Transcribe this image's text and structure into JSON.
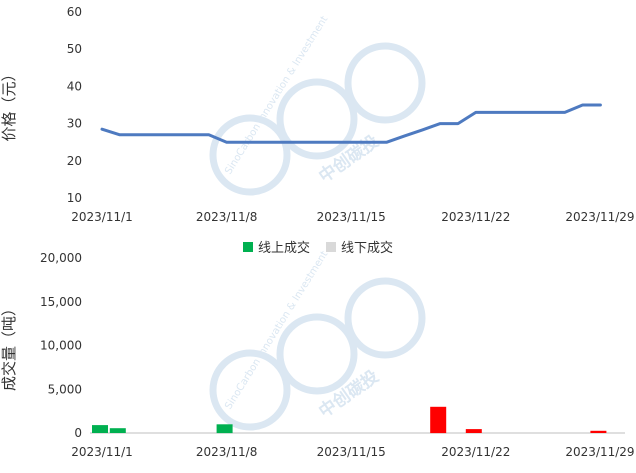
{
  "chart_data": [
    {
      "type": "line",
      "ylabel": "价格（元）",
      "ylim": [
        10,
        60
      ],
      "yticks": [
        10,
        20,
        30,
        40,
        50,
        60
      ],
      "xticks": [
        "2023/11/1",
        "2023/11/8",
        "2023/11/15",
        "2023/11/22",
        "2023/11/29"
      ],
      "grid": false,
      "series": [
        {
          "color": "#4e7ac0",
          "points": [
            [
              "2023/11/1",
              28.5
            ],
            [
              "2023/11/2",
              27
            ],
            [
              "2023/11/3",
              27
            ],
            [
              "2023/11/4",
              27
            ],
            [
              "2023/11/5",
              27
            ],
            [
              "2023/11/6",
              27
            ],
            [
              "2023/11/7",
              27
            ],
            [
              "2023/11/8",
              25
            ],
            [
              "2023/11/9",
              25
            ],
            [
              "2023/11/10",
              25
            ],
            [
              "2023/11/11",
              25
            ],
            [
              "2023/11/12",
              25
            ],
            [
              "2023/11/13",
              25
            ],
            [
              "2023/11/14",
              25
            ],
            [
              "2023/11/15",
              25
            ],
            [
              "2023/11/16",
              25
            ],
            [
              "2023/11/17",
              25
            ],
            [
              "2023/11/18",
              26.7
            ],
            [
              "2023/11/19",
              28.3
            ],
            [
              "2023/11/20",
              30
            ],
            [
              "2023/11/21",
              30
            ],
            [
              "2023/11/22",
              33
            ],
            [
              "2023/11/23",
              33
            ],
            [
              "2023/11/24",
              33
            ],
            [
              "2023/11/25",
              33
            ],
            [
              "2023/11/26",
              33
            ],
            [
              "2023/11/27",
              33
            ],
            [
              "2023/11/28",
              35
            ],
            [
              "2023/11/29",
              35
            ]
          ]
        }
      ]
    },
    {
      "type": "bar",
      "ylabel": "成交量（吨）",
      "ylim": [
        0,
        20000
      ],
      "yticks": [
        "0",
        "5,000",
        "10,000",
        "15,000",
        "20,000"
      ],
      "xticks": [
        "2023/11/1",
        "2023/11/8",
        "2023/11/15",
        "2023/11/22",
        "2023/11/29"
      ],
      "legend": {
        "placement": "top-center",
        "online": "线上成交",
        "offline": "线下成交"
      },
      "colors": {
        "online": "#00b050",
        "offline": "#d9d9d9",
        "highlight": "#ff0000"
      },
      "bars": [
        {
          "date": "2023/11/1",
          "value": 900,
          "color": "#00b050"
        },
        {
          "date": "2023/11/2",
          "value": 550,
          "color": "#00b050"
        },
        {
          "date": "2023/11/8",
          "value": 1000,
          "color": "#00b050"
        },
        {
          "date": "2023/11/20",
          "value": 3000,
          "color": "#ff0000"
        },
        {
          "date": "2023/11/22",
          "value": 450,
          "color": "#ff0000"
        },
        {
          "date": "2023/11/29",
          "value": 250,
          "color": "#ff0000"
        }
      ]
    }
  ],
  "watermark": {
    "en": "SinoCarbon Innovation & Investment",
    "cn": "中创碳投"
  }
}
